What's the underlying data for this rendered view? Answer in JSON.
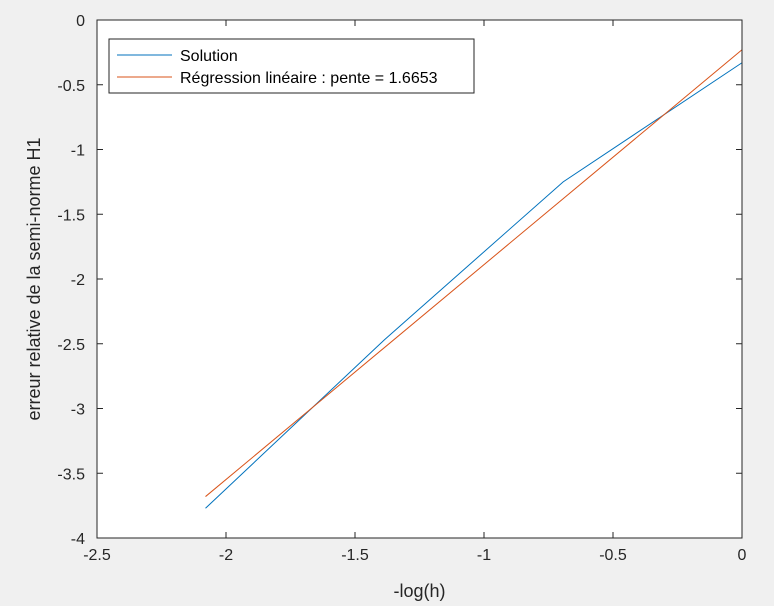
{
  "chart_data": {
    "type": "line",
    "xlabel": "-log(h)",
    "ylabel": "erreur relative de la semi-norme H1",
    "xlim": [
      -2.5,
      0
    ],
    "ylim": [
      -4,
      0
    ],
    "xticks": [
      -2.5,
      -2,
      -1.5,
      -1,
      -0.5,
      0
    ],
    "xtick_labels": [
      "-2.5",
      "-2",
      "-1.5",
      "-1",
      "-0.5",
      "0"
    ],
    "yticks": [
      -4,
      -3.5,
      -3,
      -2.5,
      -2,
      -1.5,
      -1,
      -0.5,
      0
    ],
    "ytick_labels": [
      "-4",
      "-3.5",
      "-3",
      "-2.5",
      "-2",
      "-1.5",
      "-1",
      "-0.5",
      "0"
    ],
    "grid": false,
    "legend_position": "top-left",
    "series": [
      {
        "name": "Solution",
        "color": "#0072bd",
        "x": [
          -2.0794,
          -1.3863,
          -0.6931,
          0
        ],
        "y": [
          -3.77,
          -2.47,
          -1.25,
          -0.33
        ]
      },
      {
        "name": "Régression linéaire : pente = 1.6653",
        "color": "#d95319",
        "x": [
          -2.0794,
          0
        ],
        "y": [
          -3.68,
          -0.23
        ]
      }
    ]
  }
}
